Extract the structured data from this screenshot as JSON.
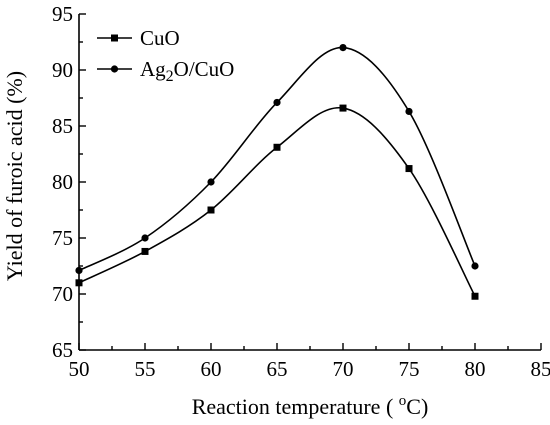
{
  "chart_data": {
    "type": "line",
    "xlabel": "Reaction temperature ( ",
    "xlabel_sup": "o",
    "xlabel_unit": "C)",
    "ylabel": "Yield of furoic acid (%)",
    "xlim": [
      50,
      85
    ],
    "ylim": [
      65,
      95
    ],
    "xticks": [
      "50",
      "55",
      "60",
      "65",
      "70",
      "75",
      "80",
      "85"
    ],
    "yticks": [
      "65",
      "70",
      "75",
      "80",
      "85",
      "90",
      "95"
    ],
    "x": [
      50,
      55,
      60,
      65,
      70,
      75,
      80
    ],
    "series": [
      {
        "name": "CuO",
        "legend_parts": [
          "CuO"
        ],
        "marker": "square",
        "values": [
          71.0,
          73.8,
          77.5,
          83.1,
          86.6,
          81.2,
          69.8
        ]
      },
      {
        "name": "Ag2O/CuO",
        "legend_parts": [
          "Ag",
          "2",
          "O/CuO"
        ],
        "marker": "circle",
        "values": [
          72.1,
          75.0,
          80.0,
          87.1,
          92.0,
          86.3,
          72.5
        ]
      }
    ],
    "legend_position": "top-left",
    "grid": false,
    "color": "#000000"
  }
}
